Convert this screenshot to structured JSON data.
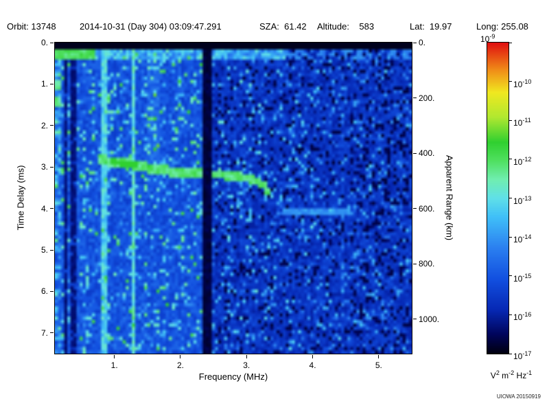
{
  "header": {
    "orbit": "Orbit: 13748",
    "datetime": "2014-10-31 (Day 304) 03:09:47.291",
    "sza": "SZA:  61.42",
    "altitude": "Altitude:    583",
    "lat": "Lat:  19.97",
    "long": "Long: 255.08"
  },
  "watermark": "UIOWA 20150919",
  "chart_data": {
    "type": "heatmap",
    "xlabel": "Frequency (MHz)",
    "ylabel_left": "Time Delay (ms)",
    "ylabel_right": "Apparent Range (km)",
    "x_range": [
      0.1,
      5.5
    ],
    "y_range_ms": [
      0.0,
      7.5
    ],
    "range_km_per_ms": 150,
    "grid": false,
    "x_ticks": [
      {
        "v": 1,
        "label": "1."
      },
      {
        "v": 2,
        "label": "2."
      },
      {
        "v": 3,
        "label": "3."
      },
      {
        "v": 4,
        "label": "4."
      },
      {
        "v": 5,
        "label": "5."
      }
    ],
    "y_left_ticks": [
      {
        "v": 0,
        "label": "0."
      },
      {
        "v": 1,
        "label": "1."
      },
      {
        "v": 2,
        "label": "2."
      },
      {
        "v": 3,
        "label": "3."
      },
      {
        "v": 4,
        "label": "4."
      },
      {
        "v": 5,
        "label": "5."
      },
      {
        "v": 6,
        "label": "6."
      },
      {
        "v": 7,
        "label": "7."
      }
    ],
    "y_right_ticks": [
      {
        "km": 0,
        "label": "0."
      },
      {
        "km": 200,
        "label": "200."
      },
      {
        "km": 400,
        "label": "400."
      },
      {
        "km": 600,
        "label": "600."
      },
      {
        "km": 800,
        "label": "800."
      },
      {
        "km": 1000,
        "label": "1000."
      }
    ],
    "colorbar": {
      "scale": "log",
      "mantissa": "10",
      "exponents": [
        "-9",
        "-10",
        "-11",
        "-12",
        "-13",
        "-14",
        "-15",
        "-16",
        "-17"
      ],
      "units": [
        {
          "base": "V",
          "exp": "2"
        },
        {
          "base": "m",
          "exp": "-2"
        },
        {
          "base": "Hz",
          "exp": "-1"
        }
      ]
    },
    "colormap": [
      [
        0.0,
        "#000010"
      ],
      [
        0.06,
        "#00045a"
      ],
      [
        0.14,
        "#0628b4"
      ],
      [
        0.24,
        "#1250e0"
      ],
      [
        0.34,
        "#2b80f0"
      ],
      [
        0.44,
        "#40c0f8"
      ],
      [
        0.5,
        "#60e0e8"
      ],
      [
        0.56,
        "#70eeb0"
      ],
      [
        0.62,
        "#50e060"
      ],
      [
        0.68,
        "#30d030"
      ],
      [
        0.76,
        "#b0e830"
      ],
      [
        0.84,
        "#f0e820"
      ],
      [
        0.91,
        "#f09018"
      ],
      [
        1.0,
        "#e01010"
      ]
    ],
    "noise_seed": 20150919,
    "features": {
      "top_black_band_ms": 0.17,
      "black_band_mhz": [
        2.34,
        2.49
      ],
      "surface_row_ms": [
        0.18,
        0.4
      ],
      "plasma_lines_mhz": [
        0.85,
        1.3
      ],
      "bright_column_mhz": [
        1.5,
        1.68
      ],
      "dark_lines_mhz": [
        0.28,
        0.38
      ],
      "left_edge_noise_max_mhz": 0.2,
      "left_edge_blobs_ms": [
        1.0,
        1.4
      ],
      "faint_streak": {
        "t_ms": 4.1,
        "f_mhz": [
          3.55,
          4.55
        ]
      },
      "echo_trace": [
        [
          0.74,
          2.8
        ],
        [
          0.85,
          2.84
        ],
        [
          1.0,
          2.88
        ],
        [
          1.15,
          2.92
        ],
        [
          1.3,
          2.95
        ],
        [
          1.45,
          2.98
        ],
        [
          1.6,
          3.03
        ],
        [
          1.75,
          3.08
        ],
        [
          1.9,
          3.12
        ],
        [
          2.05,
          3.15
        ],
        [
          2.2,
          3.16
        ],
        [
          2.34,
          3.17
        ],
        [
          2.49,
          3.17
        ],
        [
          2.65,
          3.18
        ],
        [
          2.8,
          3.21
        ],
        [
          2.95,
          3.24
        ],
        [
          3.08,
          3.29
        ],
        [
          3.18,
          3.36
        ],
        [
          3.27,
          3.46
        ],
        [
          3.34,
          3.6
        ]
      ]
    }
  }
}
